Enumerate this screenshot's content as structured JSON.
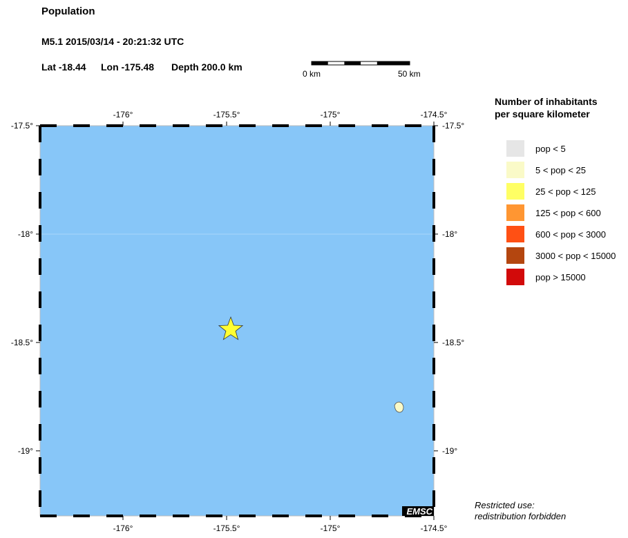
{
  "header": {
    "title": "Population",
    "event": "M5.1  2015/03/14 - 20:21:32 UTC",
    "lat": "Lat -18.44",
    "lon": "Lon -175.48",
    "depth": "Depth 200.0 km"
  },
  "scale_bar": {
    "start_label": "0 km",
    "end_label": "50 km"
  },
  "map": {
    "ocean_color": "#87c6f8",
    "extent": {
      "lon": [
        -176.4,
        -174.5
      ],
      "lat": [
        -19.3,
        -17.5
      ]
    },
    "lon_ticks": [
      "-176°",
      "-175.5°",
      "-175°",
      "-174.5°"
    ],
    "lat_ticks": [
      "-17.5°",
      "-18°",
      "-18.5°",
      "-19°"
    ],
    "epicenter": {
      "lat": -18.44,
      "lon": -175.48,
      "marker": "star-icon",
      "color": "#ffff33"
    },
    "island": {
      "lat": -18.8,
      "lon": -174.67,
      "color": "#fafac8"
    },
    "watermark": "EMSC"
  },
  "legend": {
    "title_line1": "Number of inhabitants",
    "title_line2": "per square kilometer",
    "items": [
      {
        "label": "pop < 5",
        "color": "#e6e6e6"
      },
      {
        "label": "5 < pop < 25",
        "color": "#fafac8"
      },
      {
        "label": "25 < pop < 125",
        "color": "#ffff64"
      },
      {
        "label": "125 < pop < 600",
        "color": "#ff9632"
      },
      {
        "label": "600 < pop < 3000",
        "color": "#ff5014"
      },
      {
        "label": "3000 < pop < 15000",
        "color": "#b4460f"
      },
      {
        "label": "pop > 15000",
        "color": "#d20a0a"
      }
    ]
  },
  "notice": {
    "line1": "Restricted use:",
    "line2": "redistribution forbidden"
  }
}
